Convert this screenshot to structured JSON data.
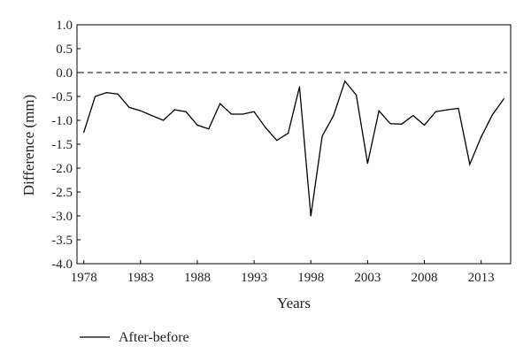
{
  "chart_data": {
    "type": "line",
    "title": "",
    "xlabel": "Years",
    "ylabel": "Difference (mm)",
    "xlim": [
      1977.4,
      2015.6
    ],
    "ylim": [
      -4.0,
      1.0
    ],
    "x_ticks": [
      "1978",
      "1983",
      "1988",
      "1993",
      "1998",
      "2003",
      "2008",
      "2013"
    ],
    "y_ticks": [
      "1.0",
      "0.5",
      "0.0",
      "-0.5",
      "-1.0",
      "-1.5",
      "-2.0",
      "-2.5",
      "-3.0",
      "-3.5",
      "-4.0"
    ],
    "reference_line": {
      "y": 0.0,
      "style": "dashed"
    },
    "grid": false,
    "legend_position": "bottom-left",
    "series": [
      {
        "name": "After-before",
        "color": "#000000",
        "x": [
          1978,
          1979,
          1980,
          1981,
          1982,
          1983,
          1984,
          1985,
          1986,
          1987,
          1988,
          1989,
          1990,
          1991,
          1992,
          1993,
          1994,
          1995,
          1996,
          1997,
          1998,
          1999,
          2000,
          2001,
          2002,
          2003,
          2004,
          2005,
          2006,
          2007,
          2008,
          2009,
          2010,
          2011,
          2012,
          2013,
          2014,
          2015
        ],
        "values": [
          -1.25,
          -0.5,
          -0.42,
          -0.45,
          -0.73,
          -0.8,
          -0.9,
          -1.0,
          -0.78,
          -0.82,
          -1.1,
          -1.18,
          -0.65,
          -0.87,
          -0.87,
          -0.82,
          -1.15,
          -1.42,
          -1.27,
          -0.3,
          -3.0,
          -1.33,
          -0.9,
          -0.18,
          -0.47,
          -1.9,
          -0.8,
          -1.07,
          -1.08,
          -0.9,
          -1.1,
          -0.82,
          -0.78,
          -0.75,
          -1.92,
          -1.35,
          -0.88,
          -0.55
        ]
      }
    ]
  }
}
